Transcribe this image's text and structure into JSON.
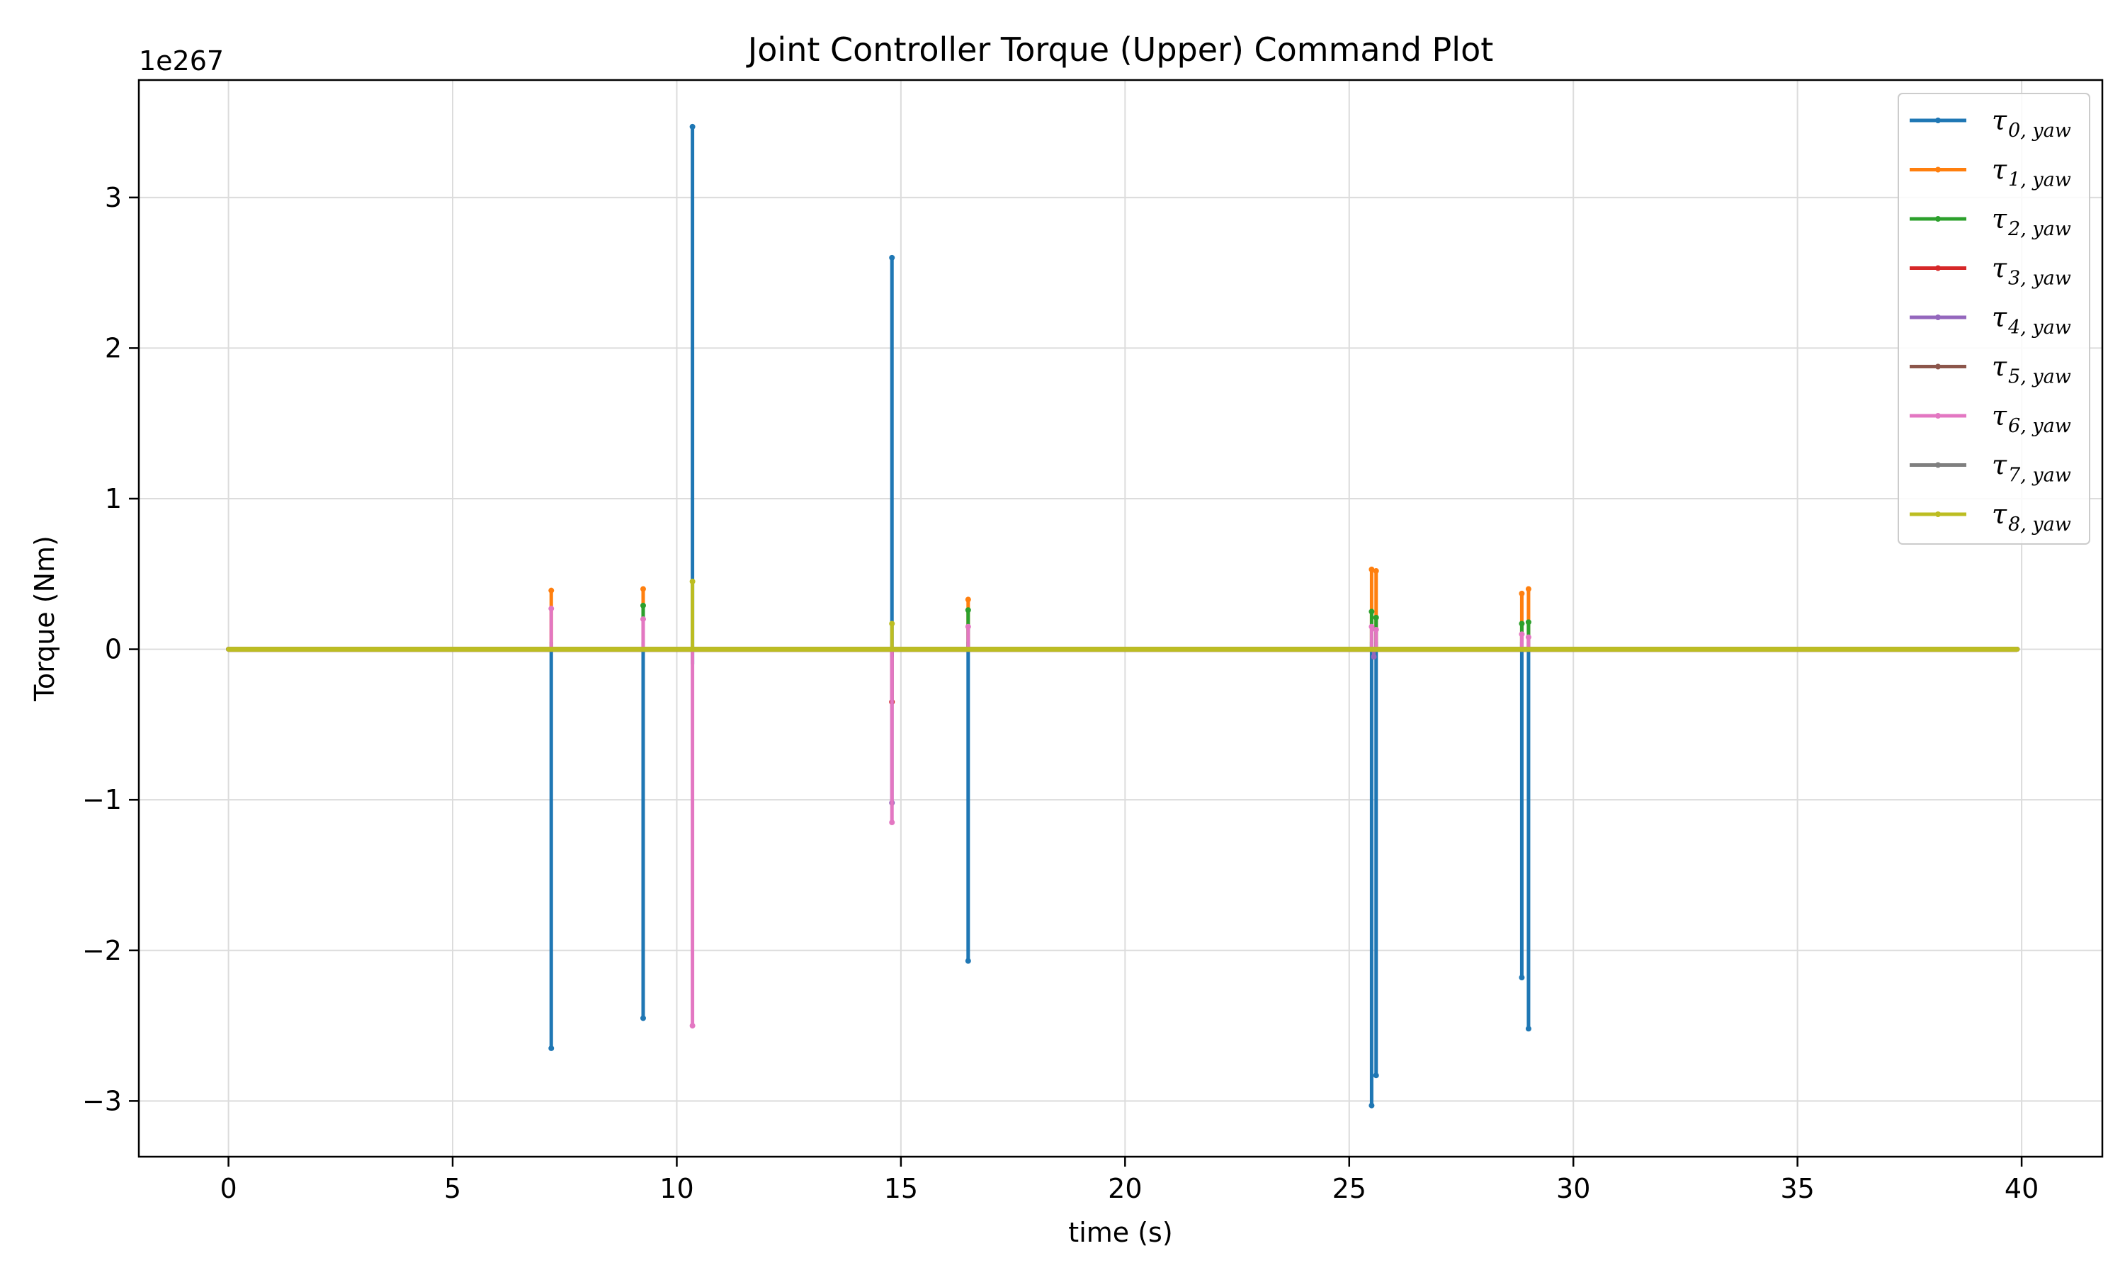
{
  "chart_data": {
    "type": "line",
    "title": "Joint Controller Torque (Upper) Command Plot",
    "xlabel": "time (s)",
    "ylabel": "Torque (Nm)",
    "y_offset_label": "1e267",
    "xlim": [
      -2,
      41.8
    ],
    "ylim": [
      -3.37,
      3.78
    ],
    "x_ticks": [
      0,
      5,
      10,
      15,
      20,
      25,
      30,
      35,
      40
    ],
    "x_tick_labels": [
      "0",
      "5",
      "10",
      "15",
      "20",
      "25",
      "30",
      "35",
      "40"
    ],
    "y_ticks": [
      -3,
      -2,
      -1,
      0,
      1,
      2,
      3
    ],
    "y_tick_labels": [
      "−3",
      "−2",
      "−1",
      "0",
      "1",
      "2",
      "3"
    ],
    "grid": true,
    "legend_position": "top-right",
    "x_range": [
      0,
      39.9
    ],
    "series": [
      {
        "name": "τ",
        "sub": "0, yaw",
        "color": "#1f77b4",
        "spikes": [
          [
            7.2,
            -2.65,
            0.05
          ],
          [
            9.25,
            -2.45,
            0.05
          ],
          [
            10.35,
            3.47,
            -0.1
          ],
          [
            14.8,
            2.6,
            -0.05
          ],
          [
            16.5,
            -2.07,
            0.05
          ],
          [
            25.5,
            -3.03,
            0.05
          ],
          [
            25.6,
            -2.83,
            0.05
          ],
          [
            28.85,
            -2.18,
            0.05
          ],
          [
            29.0,
            -2.52,
            0.05
          ]
        ]
      },
      {
        "name": "τ",
        "sub": "1, yaw",
        "color": "#ff7f0e",
        "spikes": [
          [
            7.2,
            0.39,
            0
          ],
          [
            9.25,
            0.4,
            0
          ],
          [
            16.5,
            0.33,
            0
          ],
          [
            25.5,
            0.53,
            0
          ],
          [
            25.6,
            0.52,
            0
          ],
          [
            28.85,
            0.37,
            0
          ],
          [
            29.0,
            0.4,
            0
          ]
        ]
      },
      {
        "name": "τ",
        "sub": "2, yaw",
        "color": "#2ca02c",
        "spikes": [
          [
            9.25,
            0.29,
            0
          ],
          [
            16.5,
            0.26,
            0
          ],
          [
            25.5,
            0.25,
            0
          ],
          [
            25.6,
            0.21,
            0
          ],
          [
            28.85,
            0.17,
            0
          ],
          [
            29.0,
            0.18,
            0
          ]
        ]
      },
      {
        "name": "τ",
        "sub": "3, yaw",
        "color": "#d62728",
        "spikes": [
          [
            14.8,
            -0.35,
            0
          ]
        ]
      },
      {
        "name": "τ",
        "sub": "4, yaw",
        "color": "#9467bd",
        "spikes": [
          [
            14.8,
            -1.02,
            0
          ],
          [
            25.55,
            -0.05,
            0
          ]
        ]
      },
      {
        "name": "τ",
        "sub": "5, yaw",
        "color": "#8c564b",
        "spikes": []
      },
      {
        "name": "τ",
        "sub": "6, yaw",
        "color": "#e377c2",
        "spikes": [
          [
            7.2,
            0.27,
            0
          ],
          [
            9.25,
            0.2,
            0
          ],
          [
            10.35,
            -2.5,
            0
          ],
          [
            14.8,
            -1.15,
            0
          ],
          [
            16.5,
            0.15,
            0
          ],
          [
            25.5,
            0.15,
            0
          ],
          [
            25.6,
            0.13,
            0
          ],
          [
            28.85,
            0.1,
            0
          ],
          [
            29.0,
            0.08,
            0
          ]
        ]
      },
      {
        "name": "τ",
        "sub": "7, yaw",
        "color": "#7f7f7f",
        "spikes": []
      },
      {
        "name": "τ",
        "sub": "8, yaw",
        "color": "#bcbd22",
        "spikes": [
          [
            10.35,
            0.45,
            0
          ],
          [
            14.8,
            0.17,
            0
          ]
        ]
      }
    ]
  }
}
